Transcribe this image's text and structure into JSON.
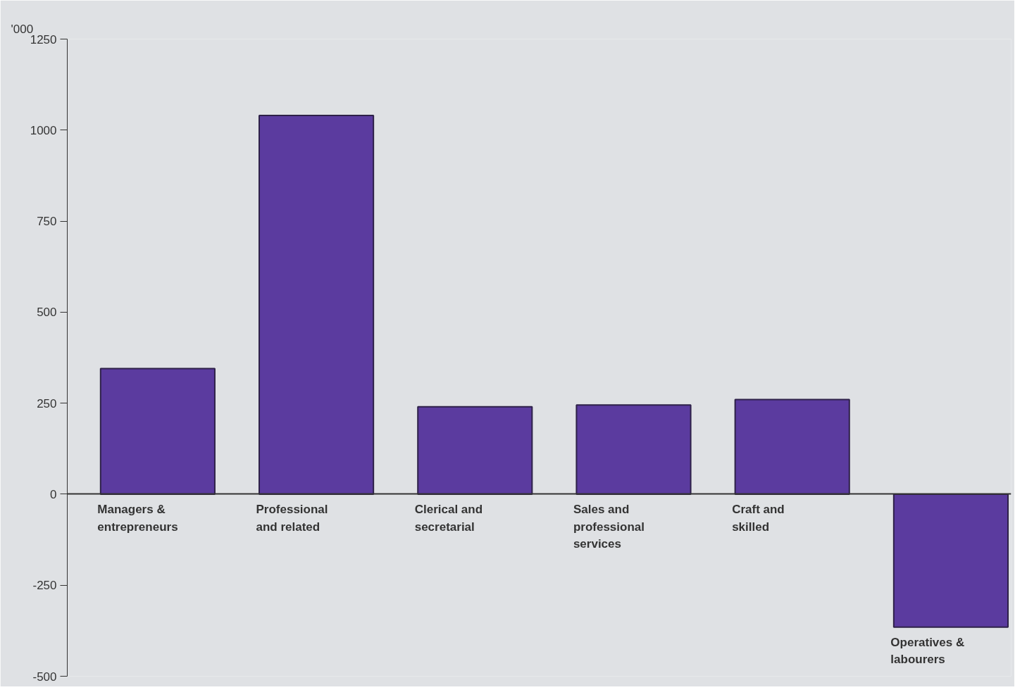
{
  "chart_data": {
    "type": "bar",
    "ylabel": "'000",
    "categories": [
      "Managers & entrepreneurs",
      "Professional and related",
      "Clerical and secretarial",
      "Sales and professional services",
      "Craft and skilled",
      "Operatives & labourers"
    ],
    "values": [
      345,
      1040,
      240,
      245,
      260,
      -365
    ],
    "color": "#5b3b9f",
    "ylim": [
      -500,
      1250
    ],
    "yticks": [
      -500,
      -250,
      0,
      250,
      500,
      750,
      1000,
      1250
    ],
    "grid": false
  }
}
